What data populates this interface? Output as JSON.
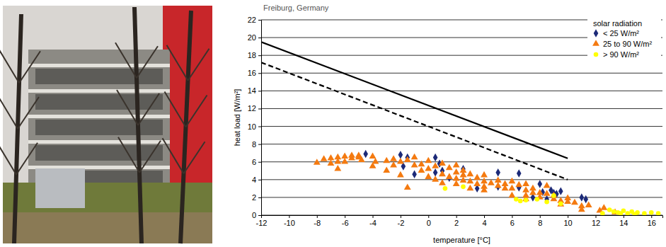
{
  "chart_data": {
    "type": "scatter",
    "title": "Freiburg, Germany",
    "xlabel": "temperature [°C]",
    "ylabel": "heat load [W/m²]",
    "legend_title": "solar radiation",
    "legend": "top-right",
    "grid": true,
    "xlim": [
      -12,
      16.8
    ],
    "xticks": [
      -12,
      -10,
      -8,
      -6,
      -4,
      -2,
      0,
      2,
      4,
      6,
      8,
      10,
      12,
      14,
      16
    ],
    "ylim": [
      0,
      22
    ],
    "yticks": [
      0,
      2,
      4,
      6,
      8,
      10,
      12,
      14,
      16,
      18,
      20,
      22
    ],
    "series": [
      {
        "name": "< 25 W/m²",
        "color": "#1c2a78",
        "marker": "diamond",
        "x": [
          -4.5,
          -2,
          -1.5,
          -1.8,
          0.5,
          0.8,
          1,
          2.5,
          0.5,
          -1,
          1.5,
          3.5,
          5,
          5,
          6.5,
          6.5,
          7.5,
          8,
          8.2,
          8.5,
          8.8,
          9,
          9.2,
          9.5,
          11,
          11.3
        ],
        "values": [
          6.9,
          6.8,
          6.5,
          5.5,
          6.5,
          5.8,
          5.0,
          5.2,
          4.8,
          4.6,
          4.2,
          3.0,
          4.8,
          3.2,
          4.7,
          3.1,
          2.0,
          3.5,
          2.6,
          1.8,
          2.8,
          2.5,
          2.4,
          2.7,
          2.0,
          1.8
        ]
      },
      {
        "name": "25 to 90 W/m²",
        "color": "#f47a10",
        "marker": "triangle",
        "x": [
          -8,
          -7.5,
          -7,
          -7,
          -6.5,
          -6.5,
          -6.5,
          -6,
          -6,
          -5.5,
          -5.5,
          -5,
          -5,
          -4.8,
          -4,
          -4,
          -3.8,
          -3,
          -3,
          -2.5,
          -2.5,
          -2,
          -2,
          -1.5,
          -1.5,
          -1,
          -1,
          -0.5,
          -0.5,
          0,
          0,
          0,
          0.5,
          0.5,
          1,
          1,
          1,
          1.5,
          1.5,
          2,
          2,
          2,
          2,
          2.5,
          2.5,
          2.5,
          3,
          3,
          3,
          3.5,
          3.5,
          4,
          4,
          4,
          4,
          4.5,
          5,
          5,
          5.5,
          5.5,
          6,
          6,
          6,
          6.5,
          7,
          7,
          7,
          7,
          7.5,
          7.5,
          8,
          8,
          8.5,
          8.5,
          9,
          9,
          9.5,
          9.5,
          10,
          10,
          10.5,
          11,
          11,
          11.5,
          12.3,
          12.6,
          13.4
        ],
        "values": [
          5.9,
          6.3,
          6.4,
          5.8,
          6.0,
          6.5,
          5.2,
          6.6,
          6.0,
          6.4,
          6.7,
          6.5,
          6.7,
          6.2,
          6.6,
          5.5,
          6.0,
          6.1,
          5.0,
          6.3,
          5.6,
          6.0,
          4.5,
          6.2,
          3.1,
          6.5,
          5.6,
          5.7,
          5.0,
          6.1,
          5.2,
          4.3,
          5.5,
          4.0,
          5.8,
          4.6,
          3.6,
          5.3,
          4.3,
          5.6,
          4.8,
          4.1,
          3.5,
          5.0,
          4.5,
          3.9,
          4.6,
          3.8,
          3.0,
          4.2,
          3.5,
          4.5,
          3.8,
          3.2,
          2.8,
          3.6,
          3.9,
          3.3,
          3.5,
          3.0,
          3.8,
          3.0,
          2.2,
          3.4,
          3.5,
          2.8,
          2.2,
          1.8,
          3.0,
          2.5,
          2.5,
          2.0,
          3.3,
          2.4,
          2.2,
          1.8,
          1.6,
          1.2,
          1.9,
          1.5,
          1.4,
          1.0,
          0.6,
          1.1,
          0.5,
          0.8,
          0.3
        ]
      },
      {
        "name": "> 90 W/m²",
        "color": "#ffff00",
        "marker": "circle",
        "x": [
          1.2,
          2.5,
          6.3,
          6.6,
          7,
          7.8,
          8.5,
          9.5,
          9,
          12.5,
          13,
          13.3,
          13.6,
          13.8,
          14,
          14.3,
          14.6,
          14.8,
          15,
          15.5,
          16,
          16.5
        ],
        "values": [
          3.0,
          3.2,
          1.8,
          1.6,
          1.7,
          1.8,
          1.5,
          1.3,
          2.2,
          0.2,
          0.6,
          0.4,
          0.3,
          0.2,
          0.5,
          0.2,
          0.4,
          0.1,
          0.3,
          0.2,
          0.3,
          0.2
        ]
      },
      {
        "type": "line",
        "color": "#000000",
        "line_style": "solid",
        "x": [
          -12,
          10
        ],
        "values": [
          19.5,
          6.4
        ]
      },
      {
        "type": "line",
        "color": "#000000",
        "line_style": "dashed",
        "x": [
          -12,
          10
        ],
        "values": [
          17.2,
          4.0
        ]
      }
    ]
  }
}
